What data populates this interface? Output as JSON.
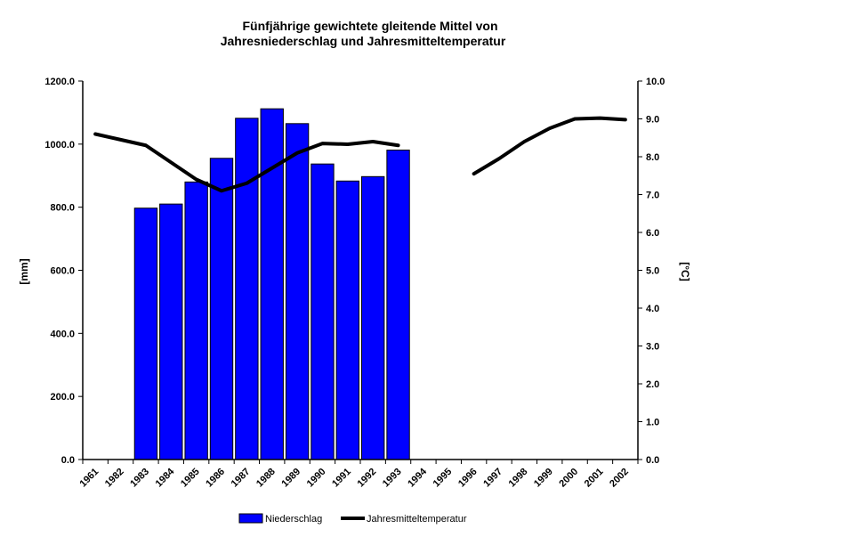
{
  "chart_data": {
    "type": "bar",
    "title": "Fünfjährige gewichtete gleitende Mittel von",
    "subtitle": "Jahresniederschlag und Jahresmitteltemperatur",
    "categories": [
      "1961",
      "1982",
      "1983",
      "1984",
      "1985",
      "1986",
      "1987",
      "1988",
      "1989",
      "1990",
      "1991",
      "1992",
      "1993",
      "1994",
      "1995",
      "1996",
      "1997",
      "1998",
      "1999",
      "2000",
      "2001",
      "2002"
    ],
    "ylabel_left": "[mm]",
    "ylabel_right": "[°C]",
    "ylim_left": [
      0,
      1200
    ],
    "ylim_right": [
      0,
      10
    ],
    "yticks_left": [
      "0.0",
      "200.0",
      "400.0",
      "600.0",
      "800.0",
      "1000.0",
      "1200.0"
    ],
    "yticks_right": [
      "0.0",
      "1.0",
      "2.0",
      "3.0",
      "4.0",
      "5.0",
      "6.0",
      "7.0",
      "8.0",
      "9.0",
      "10.0"
    ],
    "grid": false,
    "legend_position": "bottom",
    "series": [
      {
        "name": "Niederschlag",
        "type": "bar",
        "axis": "left",
        "color": "#0000ff",
        "values": [
          null,
          null,
          797,
          810,
          880,
          955,
          1082,
          1112,
          1065,
          937,
          883,
          897,
          981,
          null,
          null,
          null,
          null,
          null,
          null,
          null,
          null,
          null
        ]
      },
      {
        "name": "Jahresmitteltemperatur",
        "type": "line",
        "axis": "right",
        "color": "#000000",
        "values": [
          8.6,
          8.45,
          8.3,
          7.85,
          7.4,
          7.1,
          7.3,
          7.7,
          8.1,
          8.35,
          8.33,
          8.4,
          8.3,
          null,
          null,
          7.55,
          7.95,
          8.4,
          8.75,
          9.0,
          9.02,
          8.98
        ]
      }
    ]
  }
}
